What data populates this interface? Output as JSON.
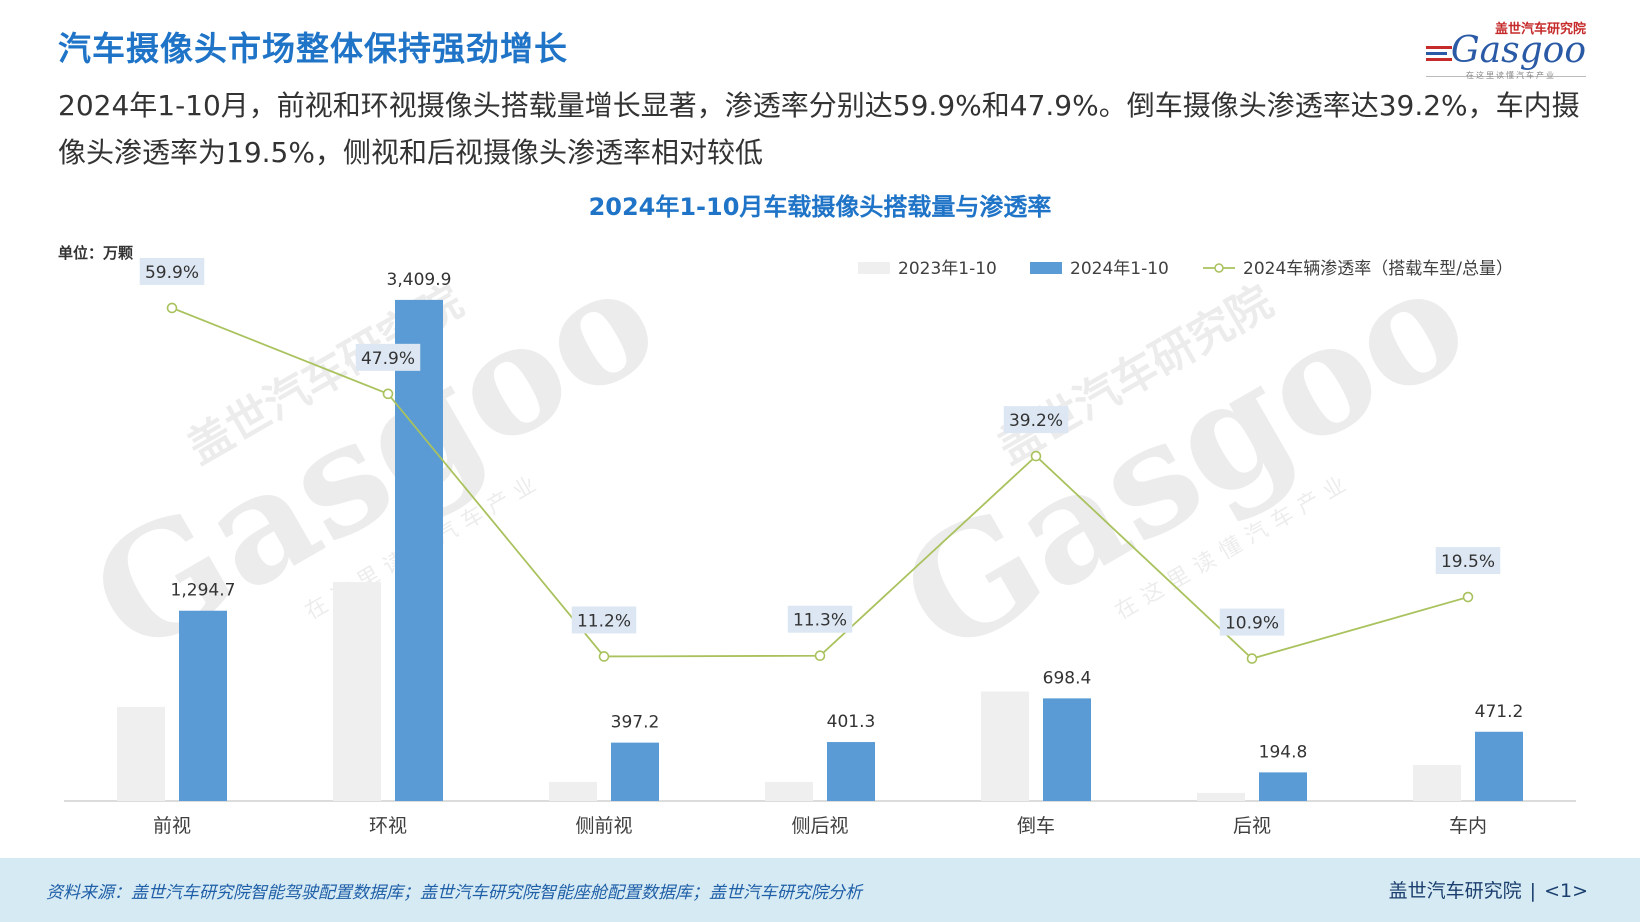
{
  "page": {
    "title": "汽车摄像头市场整体保持强劲增长",
    "subtitle": "2024年1-10月，前视和环视摄像头搭载量增长显著，渗透率分别达59.9%和47.9%。倒车摄像头渗透率达39.2%，车内摄像头渗透率为19.5%，侧视和后视摄像头渗透率相对较低"
  },
  "logo": {
    "top_text": "盖世汽车研究院",
    "word": "Gasgoo",
    "bottom_text": "在这里读懂汽车产业"
  },
  "watermark": {
    "cn": "盖世汽车研究院",
    "en": "Gasgoo",
    "slogan": "在这里读懂汽车产业"
  },
  "footer": {
    "source": "资料来源：盖世汽车研究院智能驾驶配置数据库；盖世汽车研究院智能座舱配置数据库；盖世汽车研究院分析",
    "org": "盖世汽车研究院",
    "page_number": "<1>"
  },
  "colors": {
    "title": "#1f74c7",
    "bar_2023": "#efefef",
    "bar_2024": "#5b9bd5",
    "line": "#a9c25d",
    "label_bg": "#dde7f3",
    "footer_bg": "#d5eaf3"
  },
  "chart_data": {
    "type": "bar",
    "title": "2024年1-10月车载摄像头搭载量与渗透率",
    "unit_label": "单位：万颗",
    "categories": [
      "前视",
      "环视",
      "侧前视",
      "侧后视",
      "倒车",
      "后视",
      "车内"
    ],
    "series": [
      {
        "name": "2023年1-10",
        "type": "bar",
        "values": [
          640,
          1490,
          130,
          130,
          745,
          55,
          245
        ]
      },
      {
        "name": "2024年1-10",
        "type": "bar",
        "values": [
          1294.7,
          3409.9,
          397.2,
          401.3,
          698.4,
          194.8,
          471.2
        ],
        "labels": [
          "1,294.7",
          "3,409.9",
          "397.2",
          "401.3",
          "698.4",
          "194.8",
          "471.2"
        ]
      },
      {
        "name": "2024车辆渗透率（搭载车型/总量）",
        "type": "line",
        "values": [
          59.9,
          47.9,
          11.2,
          11.3,
          39.2,
          10.9,
          19.5
        ],
        "labels": [
          "59.9%",
          "47.9%",
          "11.2%",
          "11.3%",
          "39.2%",
          "10.9%",
          "19.5%"
        ]
      }
    ],
    "ylim_bars": [
      0,
      3450
    ],
    "ylim_line": [
      -9,
      68
    ],
    "legend_position": "top-right",
    "grid": false
  }
}
